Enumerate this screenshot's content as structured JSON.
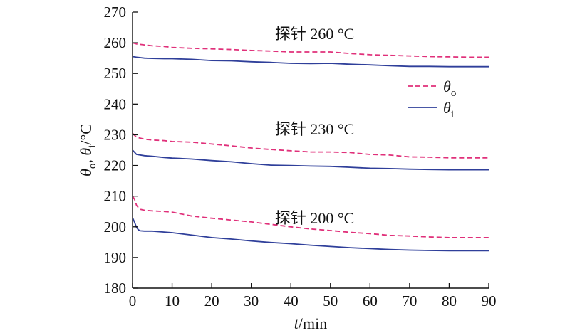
{
  "chart_data": {
    "type": "line",
    "xlabel": "t/min",
    "ylabel": "θo, θi/°C",
    "xlim": [
      0,
      90
    ],
    "ylim": [
      180,
      270
    ],
    "xticks": [
      0,
      10,
      20,
      30,
      40,
      50,
      60,
      70,
      80,
      90
    ],
    "yticks": [
      180,
      190,
      200,
      210,
      220,
      230,
      240,
      250,
      260,
      270
    ],
    "grid": false,
    "legend_position": "right",
    "legend": [
      {
        "label": "θo",
        "style": "dashed",
        "color": "#e0307a"
      },
      {
        "label": "θi",
        "style": "solid",
        "color": "#2f3f9a"
      }
    ],
    "annotations": [
      {
        "text": "探针 260 °C",
        "x": 46,
        "y": 263
      },
      {
        "text": "探针 230 °C",
        "x": 46,
        "y": 232
      },
      {
        "text": "探针 200 °C",
        "x": 46,
        "y": 203
      }
    ],
    "series": [
      {
        "group": "260",
        "legend_key": "θo",
        "style": "dashed",
        "color": "#e0307a",
        "x": [
          0,
          1,
          3,
          5,
          8,
          10,
          15,
          20,
          25,
          30,
          35,
          40,
          45,
          50,
          55,
          60,
          65,
          70,
          75,
          80,
          85,
          90
        ],
        "y": [
          260,
          259.6,
          259.3,
          259,
          258.8,
          258.5,
          258.2,
          258,
          257.8,
          257.5,
          257.3,
          257,
          257,
          257,
          256.5,
          256.1,
          255.9,
          255.7,
          255.5,
          255.4,
          255.3,
          255.3
        ]
      },
      {
        "group": "260",
        "legend_key": "θi",
        "style": "solid",
        "color": "#2f3f9a",
        "x": [
          0,
          1,
          3,
          5,
          8,
          10,
          15,
          20,
          25,
          30,
          35,
          40,
          45,
          50,
          55,
          60,
          65,
          70,
          75,
          80,
          85,
          90
        ],
        "y": [
          255.5,
          255.3,
          255,
          254.9,
          254.8,
          254.8,
          254.6,
          254.2,
          254.1,
          253.8,
          253.6,
          253.3,
          253.2,
          253.3,
          253,
          252.8,
          252.5,
          252.3,
          252.3,
          252.2,
          252.2,
          252.2
        ]
      },
      {
        "group": "230",
        "legend_key": "θo",
        "style": "dashed",
        "color": "#e0307a",
        "x": [
          0,
          1,
          3,
          5,
          8,
          10,
          15,
          20,
          25,
          30,
          35,
          40,
          45,
          50,
          55,
          60,
          65,
          70,
          75,
          80,
          85,
          90
        ],
        "y": [
          230.5,
          229.2,
          228.6,
          228.3,
          228.1,
          227.8,
          227.6,
          227,
          226.4,
          225.7,
          225.2,
          224.8,
          224.4,
          224.4,
          224.2,
          223.6,
          223.4,
          222.8,
          222.7,
          222.5,
          222.5,
          222.5
        ]
      },
      {
        "group": "230",
        "legend_key": "θi",
        "style": "solid",
        "color": "#2f3f9a",
        "x": [
          0,
          1,
          3,
          5,
          8,
          10,
          15,
          20,
          25,
          30,
          35,
          40,
          45,
          50,
          55,
          60,
          65,
          70,
          75,
          80,
          85,
          90
        ],
        "y": [
          225,
          223.6,
          223.2,
          223,
          222.6,
          222.4,
          222.1,
          221.6,
          221.2,
          220.6,
          220.1,
          220,
          219.8,
          219.7,
          219.4,
          219.1,
          219,
          218.8,
          218.7,
          218.6,
          218.6,
          218.6
        ]
      },
      {
        "group": "200",
        "legend_key": "θo",
        "style": "dashed",
        "color": "#e0307a",
        "x": [
          0,
          0.5,
          1,
          1.5,
          2,
          3,
          5,
          8,
          10,
          15,
          20,
          25,
          30,
          35,
          40,
          45,
          50,
          55,
          60,
          65,
          70,
          75,
          80,
          85,
          90
        ],
        "y": [
          210,
          209,
          207,
          206.2,
          205.7,
          205.4,
          205.2,
          205,
          204.8,
          203.5,
          202.8,
          202.2,
          201.6,
          200.8,
          200,
          199.3,
          198.8,
          198.2,
          197.8,
          197.2,
          197,
          196.7,
          196.5,
          196.5,
          196.5
        ]
      },
      {
        "group": "200",
        "legend_key": "θi",
        "style": "solid",
        "color": "#2f3f9a",
        "x": [
          0,
          0.5,
          1,
          1.5,
          2,
          3,
          5,
          8,
          10,
          15,
          20,
          25,
          30,
          35,
          40,
          45,
          50,
          55,
          60,
          65,
          70,
          75,
          80,
          85,
          90
        ],
        "y": [
          203,
          201.5,
          199.8,
          199,
          198.7,
          198.6,
          198.6,
          198.3,
          198.1,
          197.3,
          196.5,
          196,
          195.4,
          194.9,
          194.5,
          194,
          193.6,
          193.2,
          192.9,
          192.6,
          192.4,
          192.3,
          192.2,
          192.2,
          192.2
        ]
      }
    ]
  }
}
